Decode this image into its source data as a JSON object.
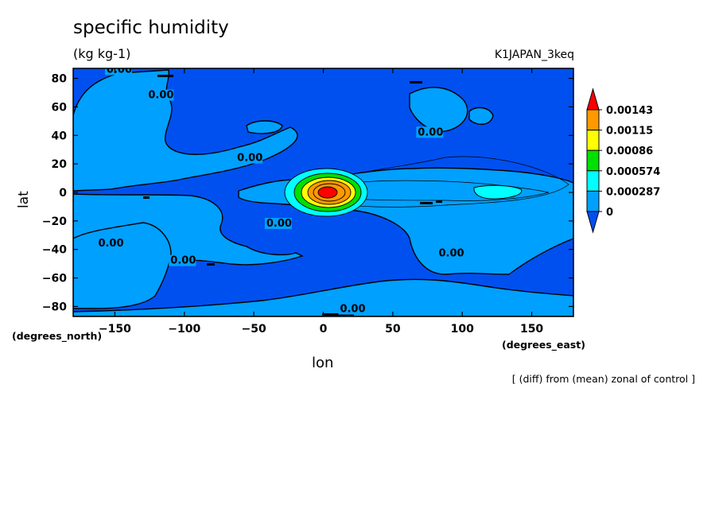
{
  "header": {
    "title": "specific humidity",
    "units": "(kg kg-1)",
    "run_name": "K1JAPAN_3keq",
    "note": "[ (diff) from (mean) zonal of control ]"
  },
  "colors": {
    "level0": "#0050f0",
    "level1": "#00a0ff",
    "level2": "#00ffff",
    "level3": "#00e000",
    "level4": "#ffff00",
    "level5": "#ff9900",
    "level6": "#ff0000"
  },
  "chart_data": {
    "type": "contour",
    "title": "specific humidity",
    "units": "(kg kg-1)",
    "xlabel": "lon",
    "ylabel": "lat",
    "x_unit_label": "(degrees_east)",
    "y_unit_label": "(degrees_north)",
    "xlim": [
      -180,
      180
    ],
    "ylim": [
      -87,
      87
    ],
    "x_ticks": [
      -150,
      -100,
      -50,
      0,
      50,
      100,
      150
    ],
    "y_ticks": [
      -80,
      -60,
      -40,
      -20,
      0,
      20,
      40,
      60,
      80
    ],
    "contour_labels": [
      {
        "text": "0.00",
        "lon": -156,
        "lat": 84
      },
      {
        "text": "0.00",
        "lon": -126,
        "lat": 66
      },
      {
        "text": "0.00",
        "lon": -62,
        "lat": 22
      },
      {
        "text": "0.00",
        "lon": 68,
        "lat": 40
      },
      {
        "text": "0.00",
        "lon": -41,
        "lat": -24
      },
      {
        "text": "0.00",
        "lon": -162,
        "lat": -38
      },
      {
        "text": "0.00",
        "lon": -110,
        "lat": -50
      },
      {
        "text": "0.00",
        "lon": 83,
        "lat": -45
      },
      {
        "text": "0.00",
        "lon": 12,
        "lat": -84
      }
    ],
    "colorbar": {
      "levels": [
        "0.00143",
        "0.00115",
        "0.00086",
        "0.000574",
        "0.000287",
        "0"
      ],
      "extend": "both"
    },
    "max_anomaly_center": {
      "lon": 2,
      "lat": 1
    }
  }
}
